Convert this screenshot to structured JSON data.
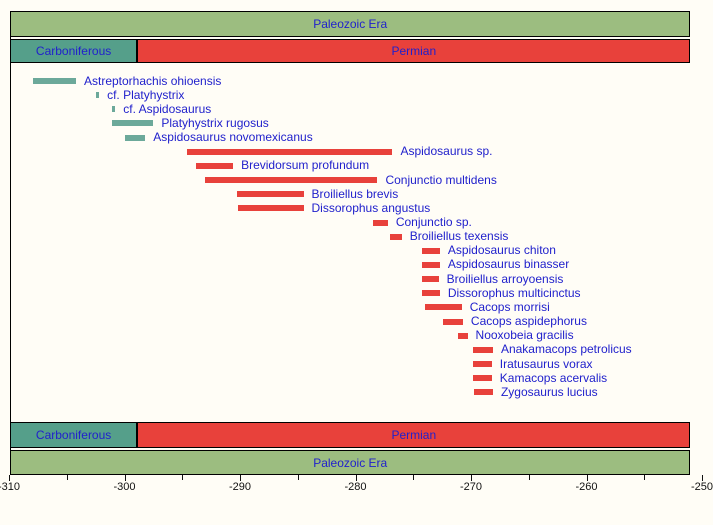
{
  "colors": {
    "era_green": "#9cbd80",
    "period_teal": "#559f8a",
    "taxon_teal": "#6ca99a",
    "taxon_red": "#e8413b",
    "label_blue": "#2121cc",
    "axis_black": "#111111",
    "background": "#fffdf6"
  },
  "chart_data": {
    "type": "bar",
    "subtype": "horizontal-range-timeline",
    "title": "",
    "xlabel": "",
    "ylabel": "",
    "xlim": [
      -310,
      -250
    ],
    "grid": false,
    "legend": false,
    "x_major_ticks": [
      -310,
      -300,
      -290,
      -280,
      -270,
      -260,
      -250
    ],
    "x_major_tick_labels": [
      "-310",
      "-300",
      "-290",
      "-280",
      "-270",
      "-260",
      "-250"
    ],
    "x_minor_ticks": [
      -305,
      -295,
      -285,
      -275,
      -265,
      -255
    ],
    "eras": [
      {
        "label": "Paleozoic Era",
        "start": -310,
        "end": -251
      }
    ],
    "periods": [
      {
        "label": "Carboniferous",
        "start": -310,
        "end": -298.9
      },
      {
        "label": "Permian",
        "start": -298.9,
        "end": -251
      }
    ],
    "taxa": [
      {
        "name": "Astreptorhachis ohioensis",
        "start": -307.9,
        "end": -304.2,
        "period": "Carboniferous"
      },
      {
        "name": "cf. Platyhystrix",
        "start": -302.5,
        "end": -302.2,
        "period": "Carboniferous"
      },
      {
        "name": "cf. Aspidosaurus",
        "start": -301.1,
        "end": -300.8,
        "period": "Carboniferous"
      },
      {
        "name": "Platyhystrix rugosus",
        "start": -301.1,
        "end": -297.5,
        "period": "Carboniferous"
      },
      {
        "name": "Aspidosaurus novomexicanus",
        "start": -300.0,
        "end": -298.2,
        "period": "Carboniferous"
      },
      {
        "name": "Aspidosaurus sp.",
        "start": -294.6,
        "end": -276.8,
        "period": "Permian"
      },
      {
        "name": "Brevidorsum profundum",
        "start": -293.8,
        "end": -290.6,
        "period": "Permian"
      },
      {
        "name": "Conjunctio multidens",
        "start": -293.0,
        "end": -278.1,
        "period": "Permian"
      },
      {
        "name": "Broiliellus brevis",
        "start": -290.3,
        "end": -284.5,
        "period": "Permian"
      },
      {
        "name": "Dissorophus angustus",
        "start": -290.2,
        "end": -284.5,
        "period": "Permian"
      },
      {
        "name": "Conjunctio sp.",
        "start": -278.5,
        "end": -277.2,
        "period": "Permian"
      },
      {
        "name": "Broiliellus texensis",
        "start": -277.0,
        "end": -276.0,
        "period": "Permian"
      },
      {
        "name": "Aspidosaurus chiton",
        "start": -274.2,
        "end": -272.7,
        "period": "Permian"
      },
      {
        "name": "Aspidosaurus binasser",
        "start": -274.2,
        "end": -272.7,
        "period": "Permian"
      },
      {
        "name": "Broiliellus arroyoensis",
        "start": -274.2,
        "end": -272.8,
        "period": "Permian"
      },
      {
        "name": "Dissorophus multicinctus",
        "start": -274.2,
        "end": -272.7,
        "period": "Permian"
      },
      {
        "name": "Cacops morrisi",
        "start": -274.0,
        "end": -270.8,
        "period": "Permian"
      },
      {
        "name": "Cacops aspidephorus",
        "start": -272.4,
        "end": -270.7,
        "period": "Permian"
      },
      {
        "name": "Nooxobeia gracilis",
        "start": -271.1,
        "end": -270.3,
        "period": "Permian"
      },
      {
        "name": "Anakamacops petrolicus",
        "start": -269.8,
        "end": -268.1,
        "period": "Permian"
      },
      {
        "name": "Iratusaurus vorax",
        "start": -269.8,
        "end": -268.2,
        "period": "Permian"
      },
      {
        "name": "Kamacops acervalis",
        "start": -269.8,
        "end": -268.2,
        "period": "Permian"
      },
      {
        "name": "Zygosaurus lucius",
        "start": -269.7,
        "end": -268.1,
        "period": "Permian"
      }
    ]
  }
}
